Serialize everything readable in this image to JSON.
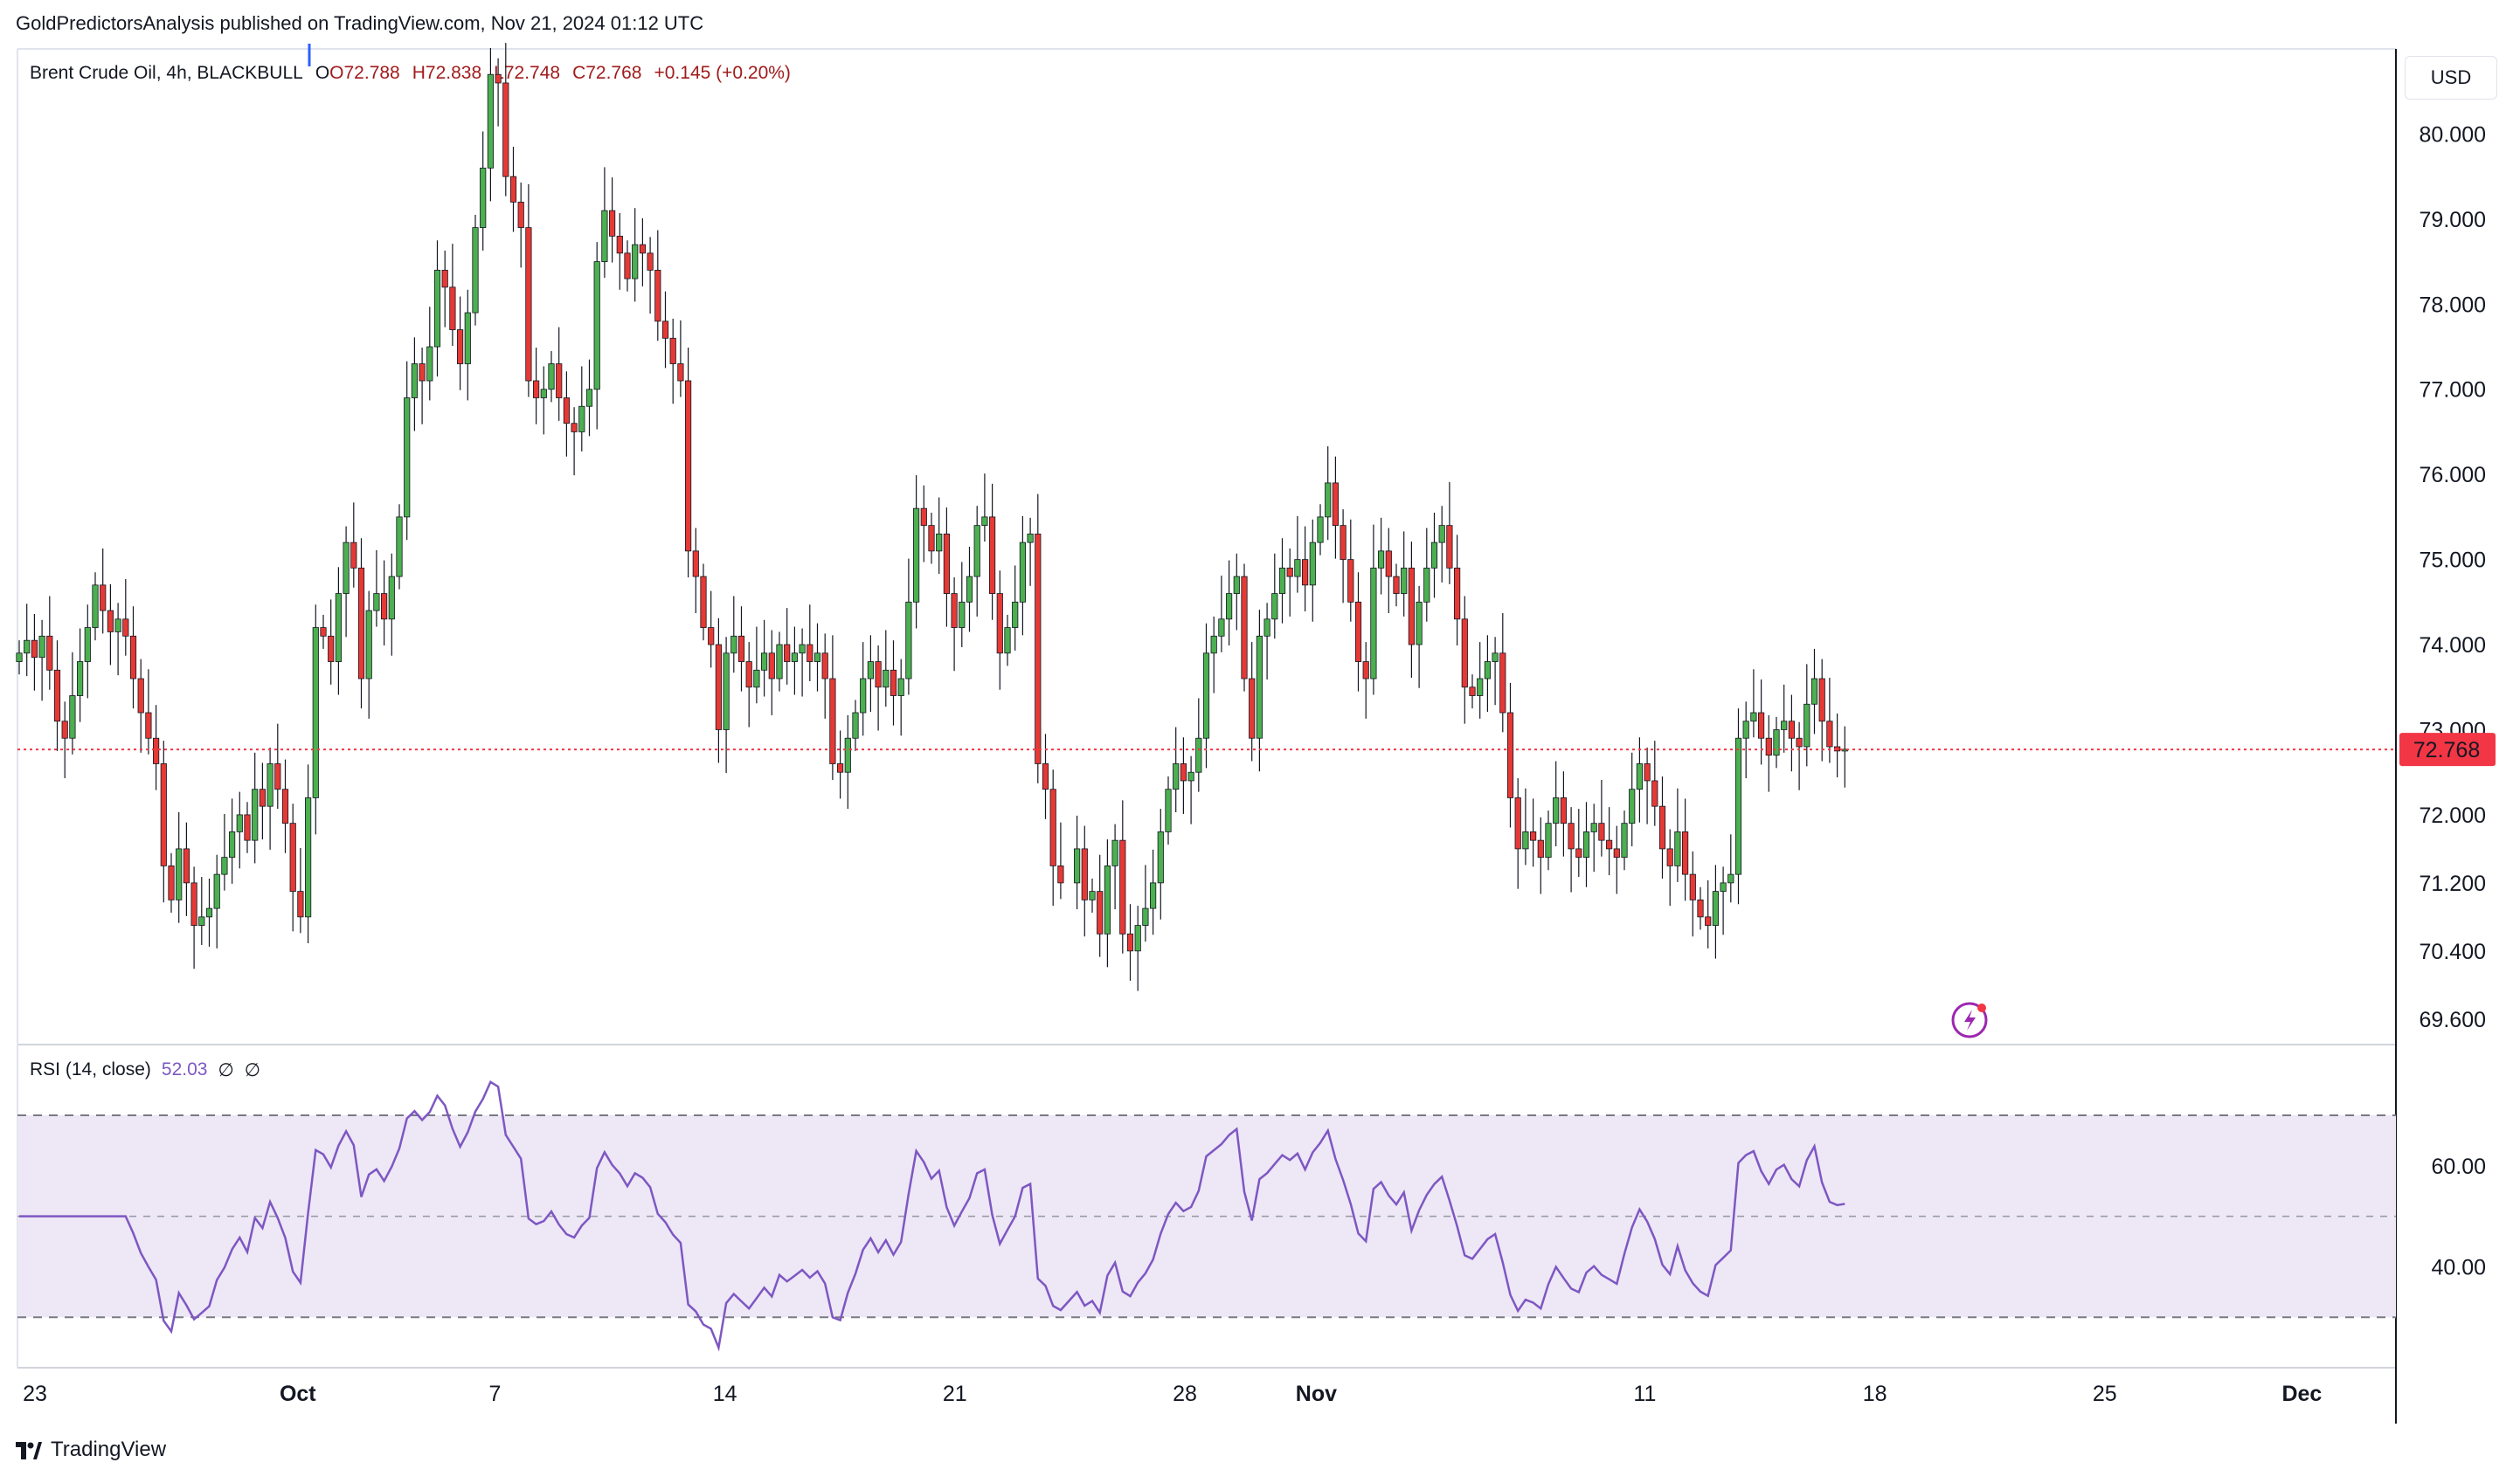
{
  "header": {
    "publisher_line": "GoldPredictorsAnalysis published on TradingView.com, Nov 21, 2024 01:12 UTC"
  },
  "footer": {
    "brand": "TradingView"
  },
  "colors": {
    "up": "#4caf50",
    "down": "#e53935",
    "rsi_line": "#7e57c2",
    "rsi_band": "#ede7f6",
    "last_price_bg": "#f23645"
  },
  "legend": {
    "symbol": "Brent Crude Oil, 4h, BLACKBULL",
    "open": "O72.788",
    "high": "H72.838",
    "low": "L72.748",
    "close": "C72.768",
    "change": "+0.145 (+0.20%)"
  },
  "rsi_legend": {
    "label": "RSI (14, close)",
    "value": "52.03",
    "extra1": "∅",
    "extra2": "∅"
  },
  "currency": "USD",
  "last_price_label": "72.768",
  "chart_data": [
    {
      "type": "candlestick",
      "title": "Brent Crude Oil, 4h, BLACKBULL",
      "y_ticks": [
        "80.000",
        "79.000",
        "78.000",
        "77.000",
        "76.000",
        "75.000",
        "74.000",
        "73.000",
        "72.000",
        "71.200",
        "70.400",
        "69.600"
      ],
      "ylim": [
        69.3,
        81.0
      ],
      "x_ticks": [
        {
          "label": "23",
          "day": 0
        },
        {
          "label": "Oct",
          "day": 8,
          "bold": true
        },
        {
          "label": "7",
          "day": 14
        },
        {
          "label": "14",
          "day": 21
        },
        {
          "label": "21",
          "day": 28
        },
        {
          "label": "28",
          "day": 35
        },
        {
          "label": "Nov",
          "day": 39,
          "bold": true
        },
        {
          "label": "11",
          "day": 49
        },
        {
          "label": "18",
          "day": 56
        },
        {
          "label": "25",
          "day": 63
        },
        {
          "label": "Dec",
          "day": 69,
          "bold": true
        }
      ],
      "last_price": 72.768,
      "closes": [
        73.9,
        74.05,
        73.85,
        74.1,
        73.7,
        73.1,
        72.9,
        73.4,
        73.8,
        74.2,
        74.7,
        74.4,
        74.15,
        74.3,
        74.1,
        73.6,
        73.2,
        72.9,
        72.6,
        71.4,
        71.0,
        71.6,
        71.2,
        70.7,
        70.8,
        70.9,
        71.3,
        71.5,
        71.8,
        72.0,
        71.7,
        72.3,
        72.1,
        72.6,
        72.3,
        71.9,
        71.1,
        70.8,
        72.2,
        74.2,
        74.1,
        73.8,
        74.6,
        75.2,
        74.9,
        73.6,
        74.4,
        74.6,
        74.3,
        74.8,
        75.5,
        76.9,
        77.3,
        77.1,
        77.5,
        78.4,
        78.2,
        77.7,
        77.3,
        77.9,
        78.9,
        79.6,
        80.7,
        80.6,
        79.5,
        79.2,
        78.9,
        77.1,
        76.9,
        77.0,
        77.3,
        76.9,
        76.6,
        76.5,
        76.8,
        77.0,
        78.5,
        79.1,
        78.8,
        78.6,
        78.3,
        78.7,
        78.6,
        78.4,
        77.8,
        77.6,
        77.3,
        77.1,
        75.1,
        74.8,
        74.2,
        74.0,
        73.0,
        73.9,
        74.1,
        73.8,
        73.5,
        73.7,
        73.9,
        73.6,
        74.0,
        73.8,
        73.9,
        74.0,
        73.8,
        73.9,
        73.6,
        72.6,
        72.5,
        72.9,
        73.2,
        73.6,
        73.8,
        73.5,
        73.7,
        73.4,
        73.6,
        74.5,
        75.6,
        75.4,
        75.1,
        75.3,
        74.6,
        74.2,
        74.5,
        74.8,
        75.4,
        75.5,
        74.6,
        73.9,
        74.2,
        74.5,
        75.2,
        75.3,
        72.6,
        72.3,
        71.4,
        71.2,
        71.6,
        71.0,
        71.1,
        70.6,
        71.4,
        71.7,
        70.6,
        70.4,
        70.7,
        70.9,
        71.2,
        71.8,
        72.3,
        72.6,
        72.4,
        72.5,
        72.9,
        73.9,
        74.1,
        74.3,
        74.6,
        74.8,
        73.6,
        72.9,
        74.1,
        74.3,
        74.6,
        74.9,
        74.8,
        75.0,
        74.7,
        75.2,
        75.5,
        75.9,
        75.4,
        75.0,
        74.5,
        73.8,
        73.6,
        74.9,
        75.1,
        74.8,
        74.6,
        74.9,
        74.0,
        74.5,
        74.9,
        75.2,
        75.4,
        74.9,
        74.3,
        73.5,
        73.4,
        73.6,
        73.8,
        73.9,
        73.2,
        72.2,
        71.6,
        71.8,
        71.7,
        71.5,
        71.9,
        72.2,
        71.9,
        71.6,
        71.5,
        71.8,
        71.9,
        71.7,
        71.6,
        71.5,
        71.9,
        72.3,
        72.6,
        72.4,
        72.1,
        71.6,
        71.4,
        71.8,
        71.3,
        71.0,
        70.8,
        70.7,
        71.1,
        71.2,
        71.3,
        72.9,
        73.1,
        73.2,
        72.9,
        72.7,
        73.0,
        73.1,
        72.9,
        72.8,
        73.3,
        73.6,
        73.1,
        72.8,
        72.75,
        72.77
      ],
      "rsi_ticks": [
        "60.00",
        "40.00"
      ],
      "rsi_range": [
        20,
        84
      ],
      "rsi_levels": {
        "upper": 70,
        "middle": 50,
        "lower": 30
      },
      "rsi_last": 52.03
    }
  ]
}
